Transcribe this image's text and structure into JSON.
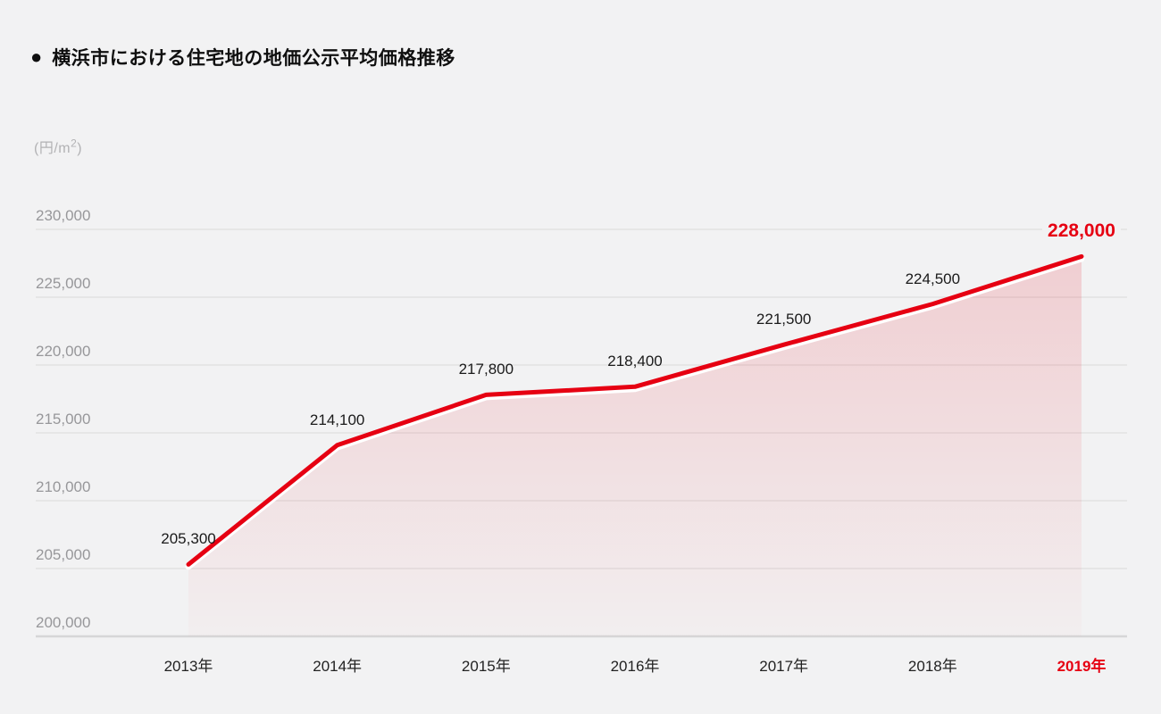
{
  "header": {
    "bullet": "●",
    "title": "横浜市における住宅地の地価公示平均価格推移"
  },
  "chart_data": {
    "type": "area",
    "title": "横浜市における住宅地の地価公示平均価格推移",
    "unit": {
      "prefix": "(円/m",
      "sup": "2",
      "suffix": ")"
    },
    "categories": [
      "2013年",
      "2014年",
      "2015年",
      "2016年",
      "2017年",
      "2018年",
      "2019年"
    ],
    "values": [
      205300,
      214100,
      217800,
      218400,
      221500,
      224500,
      228000
    ],
    "value_labels": [
      "205,300",
      "214,100",
      "217,800",
      "218,400",
      "221,500",
      "224,500",
      "228,000"
    ],
    "y_ticks": [
      230000,
      225000,
      220000,
      215000,
      210000,
      205000,
      200000
    ],
    "y_tick_labels": [
      "230,000",
      "225,000",
      "220,000",
      "215,000",
      "210,000",
      "205,000",
      "200,000"
    ],
    "ylim": [
      200000,
      230000
    ],
    "grid": true,
    "legend": "none",
    "highlight_index": 6,
    "colors": {
      "line": "#e60012",
      "line_underlay": "#ffffff",
      "label": "#1a1a1a",
      "tick": "#97979a",
      "grid": "#e1e1e2",
      "baseline": "#d6d6d7",
      "background": "#f2f2f3",
      "fill_top": "rgba(230,0,18,0.15)",
      "fill_bottom": "rgba(230,0,18,0.015)"
    }
  }
}
